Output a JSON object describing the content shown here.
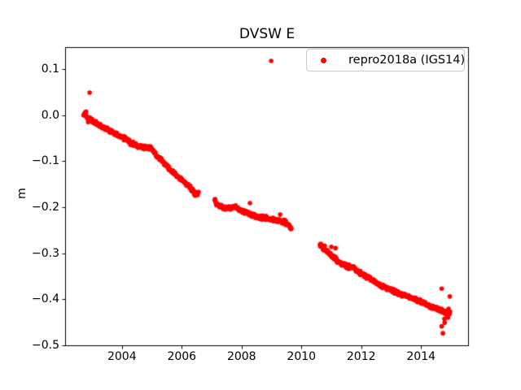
{
  "figure": {
    "background": "#ffffff",
    "accent_color": "#ff0000",
    "spine_color": "#000000"
  },
  "legend": {
    "marker": "dot-icon",
    "marker_color": "#ff0000",
    "label": "repro2018a (IGS14)",
    "position": "upper right"
  },
  "chart_data": {
    "type": "scatter",
    "title": "DVSW E",
    "xlabel": "",
    "ylabel": "m",
    "xlim": [
      2002.1,
      2015.6
    ],
    "ylim": [
      -0.502,
      0.148
    ],
    "x_ticks": [
      2004,
      2006,
      2008,
      2010,
      2012,
      2014
    ],
    "x_tick_labels": [
      "2004",
      "2006",
      "2008",
      "2010",
      "2012",
      "2014"
    ],
    "y_ticks": [
      0.1,
      0.0,
      -0.1,
      -0.2,
      -0.3,
      -0.4,
      -0.5
    ],
    "y_tick_labels": [
      "0.1",
      "0.0",
      "−0.1",
      "−0.2",
      "−0.3",
      "−0.4",
      "−0.5"
    ],
    "grid": false,
    "legend_position": "upper right",
    "series": [
      {
        "name": "repro2018a (IGS14)",
        "color": "#ff0000",
        "marker": "dot",
        "segments": [
          [
            [
              2002.72,
              0.0
            ],
            [
              2002.78,
              0.004
            ],
            [
              2002.85,
              -0.007
            ],
            [
              2002.95,
              -0.01
            ],
            [
              2003.1,
              -0.016
            ],
            [
              2003.3,
              -0.024
            ],
            [
              2003.5,
              -0.03
            ],
            [
              2003.7,
              -0.038
            ],
            [
              2003.9,
              -0.045
            ],
            [
              2004.1,
              -0.051
            ],
            [
              2004.3,
              -0.06
            ],
            [
              2004.45,
              -0.065
            ],
            [
              2004.6,
              -0.068
            ],
            [
              2004.8,
              -0.07
            ],
            [
              2004.95,
              -0.071
            ],
            [
              2005.1,
              -0.083
            ],
            [
              2005.33,
              -0.099
            ],
            [
              2005.55,
              -0.115
            ],
            [
              2005.79,
              -0.129
            ],
            [
              2006.06,
              -0.144
            ],
            [
              2006.2,
              -0.152
            ],
            [
              2006.35,
              -0.163
            ],
            [
              2006.45,
              -0.172
            ],
            [
              2006.52,
              -0.172
            ],
            [
              2006.56,
              -0.167
            ]
          ],
          [
            [
              2007.1,
              -0.182
            ],
            [
              2007.16,
              -0.193
            ],
            [
              2007.3,
              -0.198
            ],
            [
              2007.45,
              -0.203
            ],
            [
              2007.6,
              -0.202
            ],
            [
              2007.75,
              -0.199
            ],
            [
              2007.85,
              -0.201
            ],
            [
              2008.0,
              -0.208
            ],
            [
              2008.1,
              -0.211
            ],
            [
              2008.25,
              -0.215
            ],
            [
              2008.45,
              -0.219
            ],
            [
              2008.65,
              -0.222
            ],
            [
              2008.9,
              -0.224
            ],
            [
              2009.1,
              -0.228
            ],
            [
              2009.25,
              -0.23
            ],
            [
              2009.4,
              -0.231
            ],
            [
              2009.5,
              -0.235
            ],
            [
              2009.6,
              -0.241
            ],
            [
              2009.66,
              -0.246
            ]
          ],
          [
            [
              2010.62,
              -0.281
            ],
            [
              2010.7,
              -0.287
            ],
            [
              2010.85,
              -0.295
            ],
            [
              2010.95,
              -0.302
            ],
            [
              2011.1,
              -0.31
            ],
            [
              2011.25,
              -0.318
            ],
            [
              2011.45,
              -0.326
            ],
            [
              2011.62,
              -0.33
            ],
            [
              2011.75,
              -0.332
            ],
            [
              2011.9,
              -0.34
            ],
            [
              2012.1,
              -0.349
            ],
            [
              2012.3,
              -0.356
            ],
            [
              2012.5,
              -0.364
            ],
            [
              2012.7,
              -0.371
            ],
            [
              2012.95,
              -0.379
            ],
            [
              2013.2,
              -0.385
            ],
            [
              2013.45,
              -0.391
            ],
            [
              2013.7,
              -0.398
            ],
            [
              2013.95,
              -0.405
            ],
            [
              2014.2,
              -0.412
            ],
            [
              2014.4,
              -0.418
            ],
            [
              2014.6,
              -0.421
            ],
            [
              2014.75,
              -0.426
            ],
            [
              2014.85,
              -0.43
            ],
            [
              2014.95,
              -0.43
            ]
          ]
        ],
        "outliers": [
          [
            2002.92,
            0.049
          ],
          [
            2008.99,
            0.118
          ],
          [
            2002.8,
            0.008
          ],
          [
            2002.87,
            -0.015
          ],
          [
            2008.28,
            -0.191
          ],
          [
            2009.29,
            -0.216
          ],
          [
            2010.65,
            -0.28
          ],
          [
            2010.72,
            -0.292
          ],
          [
            2010.78,
            -0.284
          ],
          [
            2011.0,
            -0.286
          ],
          [
            2011.14,
            -0.289
          ],
          [
            2014.69,
            -0.377
          ],
          [
            2014.96,
            -0.394
          ],
          [
            2014.69,
            -0.459
          ],
          [
            2014.73,
            -0.474
          ],
          [
            2014.78,
            -0.443
          ],
          [
            2014.79,
            -0.451
          ],
          [
            2014.88,
            -0.438
          ],
          [
            2014.9,
            -0.44
          ],
          [
            2014.92,
            -0.421
          ],
          [
            2014.97,
            -0.427
          ]
        ]
      }
    ]
  }
}
